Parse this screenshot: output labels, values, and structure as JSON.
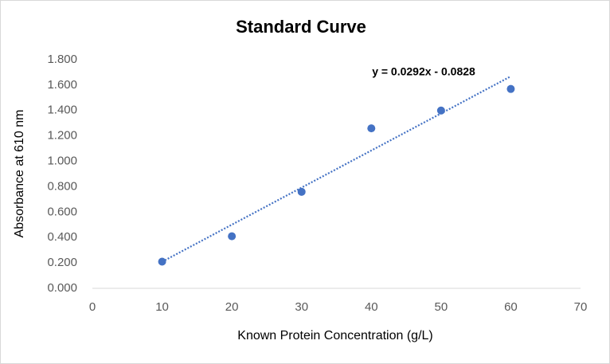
{
  "chart_data": {
    "type": "scatter",
    "title": "Standard Curve",
    "x_label": "Known Protein Concentration (g/L)",
    "y_label": "Absorbance at 610 nm",
    "x": [
      10,
      20,
      30,
      40,
      50,
      60
    ],
    "values": [
      0.21,
      0.41,
      0.76,
      1.26,
      1.4,
      1.57
    ],
    "color": "#4472c4",
    "xlim": [
      0,
      70
    ],
    "xticks": [
      0,
      10,
      20,
      30,
      40,
      50,
      60,
      70
    ],
    "ylim": [
      0,
      1.8
    ],
    "yticks": [
      {
        "value": 0,
        "label": "0.000"
      },
      {
        "value": 0.2,
        "label": "0.200"
      },
      {
        "value": 0.4,
        "label": "0.400"
      },
      {
        "value": 0.6,
        "label": "0.600"
      },
      {
        "value": 0.8,
        "label": "0.800"
      },
      {
        "value": 1.0,
        "label": "1.000"
      },
      {
        "value": 1.2,
        "label": "1.200"
      },
      {
        "value": 1.4,
        "label": "1.400"
      },
      {
        "value": 1.6,
        "label": "1.600"
      },
      {
        "value": 1.8,
        "label": "1.800"
      }
    ],
    "grid": false,
    "trendline": {
      "slope": 0.0292,
      "intercept": -0.0828,
      "label": "y = 0.0292x - 0.0828"
    }
  }
}
